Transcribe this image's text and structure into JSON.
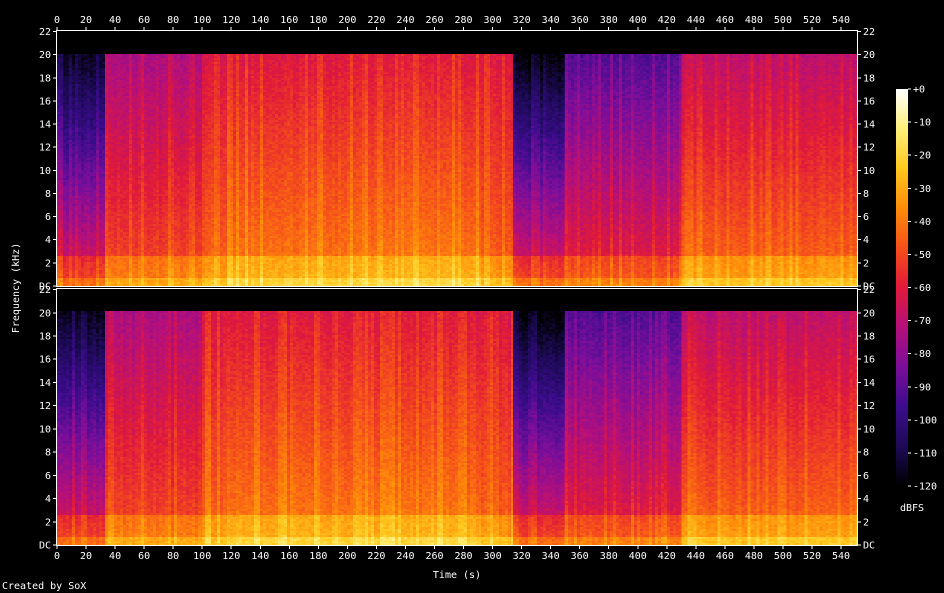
{
  "chart_data": {
    "type": "heatmap",
    "kind": "spectrogram",
    "xlabel": "Time (s)",
    "ylabel": "Frequency (kHz)",
    "xlim": [
      0,
      551
    ],
    "ylim": [
      0,
      22.05
    ],
    "x_ticks": [
      0,
      20,
      40,
      60,
      80,
      100,
      120,
      140,
      160,
      180,
      200,
      220,
      240,
      260,
      280,
      300,
      320,
      340,
      360,
      380,
      400,
      420,
      440,
      460,
      480,
      500,
      520,
      540
    ],
    "y_ticks": [
      {
        "value": 0,
        "label": "DC"
      },
      {
        "value": 2,
        "label": "2"
      },
      {
        "value": 4,
        "label": "4"
      },
      {
        "value": 6,
        "label": "6"
      },
      {
        "value": 8,
        "label": "8"
      },
      {
        "value": 10,
        "label": "10"
      },
      {
        "value": 12,
        "label": "12"
      },
      {
        "value": 14,
        "label": "14"
      },
      {
        "value": 16,
        "label": "16"
      },
      {
        "value": 18,
        "label": "18"
      },
      {
        "value": 20,
        "label": "20"
      },
      {
        "value": 22,
        "label": "22"
      }
    ],
    "channels": 2,
    "colorbar": {
      "label": "dBFS",
      "ticks": [
        {
          "value": 0,
          "label": "+0"
        },
        {
          "value": -10,
          "label": "-10"
        },
        {
          "value": -20,
          "label": "-20"
        },
        {
          "value": -30,
          "label": "-30"
        },
        {
          "value": -40,
          "label": "-40"
        },
        {
          "value": -50,
          "label": "-50"
        },
        {
          "value": -60,
          "label": "-60"
        },
        {
          "value": -70,
          "label": "-70"
        },
        {
          "value": -80,
          "label": "-80"
        },
        {
          "value": -90,
          "label": "-90"
        },
        {
          "value": -100,
          "label": "-100"
        },
        {
          "value": -110,
          "label": "-110"
        },
        {
          "value": -120,
          "label": "-120"
        }
      ],
      "range": [
        -120,
        0
      ],
      "colors": [
        "#000000",
        "#1c0a55",
        "#3c0c8c",
        "#7a0e9a",
        "#b40f7a",
        "#e01a3a",
        "#f5501a",
        "#ff8c0a",
        "#ffc81e",
        "#fff07a",
        "#ffffff"
      ]
    },
    "segments": [
      {
        "start": 0,
        "end": 33,
        "cutoff": 20,
        "base": -62,
        "slope": -2.8
      },
      {
        "start": 33,
        "end": 100,
        "cutoff": 20,
        "base": -50,
        "slope": -1.3
      },
      {
        "start": 100,
        "end": 117,
        "cutoff": 20,
        "base": -44,
        "slope": -1.0
      },
      {
        "start": 117,
        "end": 292,
        "cutoff": 20,
        "base": -40,
        "slope": -1.15
      },
      {
        "start": 292,
        "end": 314,
        "cutoff": 20,
        "base": -46,
        "slope": -0.9
      },
      {
        "start": 314,
        "end": 350,
        "cutoff": 20,
        "base": -62,
        "slope": -3.0
      },
      {
        "start": 350,
        "end": 430,
        "cutoff": 20,
        "base": -58,
        "slope": -1.8
      },
      {
        "start": 430,
        "end": 551,
        "cutoff": 20,
        "base": -44,
        "slope": -1.4
      }
    ]
  },
  "footer": {
    "credit": "Created by SoX"
  }
}
